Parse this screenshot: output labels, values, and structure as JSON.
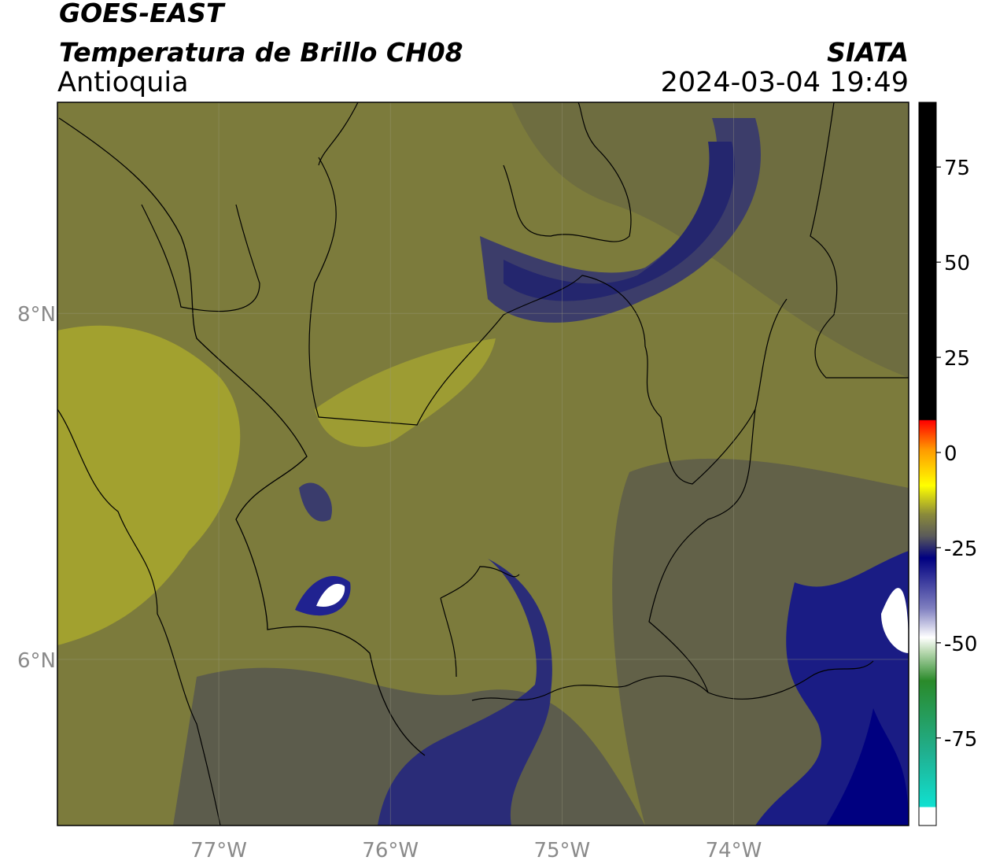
{
  "header": {
    "title": "GOES-EAST",
    "subtitle": "Temperatura de Brillo CH08",
    "region": "Antioquia",
    "source": "SIATA",
    "datetime": "2024-03-04 19:49"
  },
  "map": {
    "xlim": [
      -77.94,
      -72.98
    ],
    "ylim": [
      5.04,
      9.22
    ],
    "xticks": [
      {
        "value": -77,
        "label": "77°W"
      },
      {
        "value": -76,
        "label": "76°W"
      },
      {
        "value": -75,
        "label": "75°W"
      },
      {
        "value": -74,
        "label": "74°W"
      }
    ],
    "yticks": [
      {
        "value": 8,
        "label": "8°N"
      },
      {
        "value": 6,
        "label": "6°N"
      }
    ],
    "grid": true
  },
  "colorbar": {
    "lim": [
      -98,
      92
    ],
    "ticks": [
      75,
      50,
      25,
      0,
      -25,
      -50,
      -75
    ]
  }
}
